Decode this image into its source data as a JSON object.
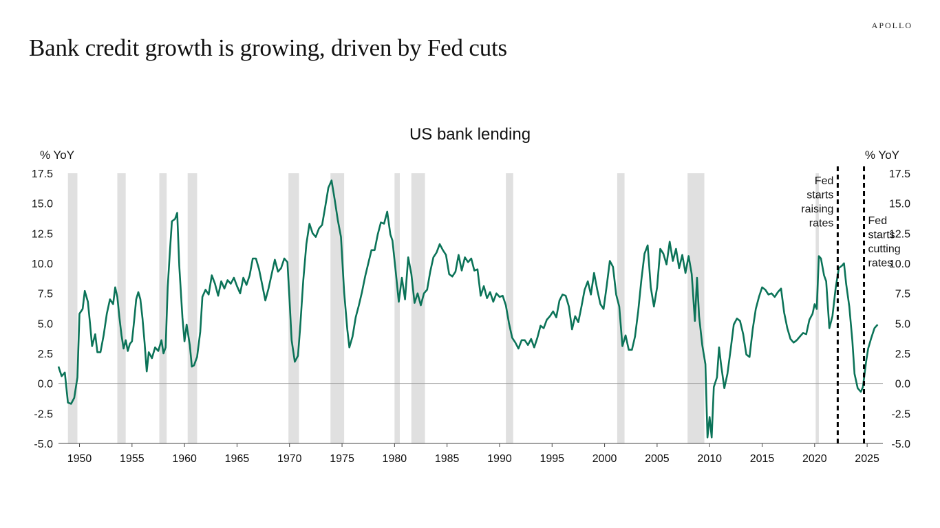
{
  "brand": "APOLLO",
  "headline": "Bank credit growth is growing, driven by Fed cuts",
  "chart_data": {
    "type": "line",
    "title": "US bank lending",
    "ylabel_left": "% YoY",
    "ylabel_right": "% YoY",
    "xlim": [
      1948,
      2026.5
    ],
    "ylim": [
      -5.0,
      17.5
    ],
    "yticks": [
      "17.5",
      "15.0",
      "12.5",
      "10.0",
      "7.5",
      "5.0",
      "2.5",
      "0.0",
      "-2.5",
      "-5.0"
    ],
    "xticks": [
      "1950",
      "1955",
      "1960",
      "1965",
      "1970",
      "1975",
      "1980",
      "1985",
      "1990",
      "1995",
      "2000",
      "2005",
      "2010",
      "2015",
      "2020",
      "2025"
    ],
    "grid": false,
    "zero_line": true,
    "recessions": [
      [
        1948.9,
        1949.8
      ],
      [
        1953.6,
        1954.4
      ],
      [
        1957.6,
        1958.3
      ],
      [
        1960.3,
        1961.2
      ],
      [
        1969.9,
        1970.9
      ],
      [
        1973.9,
        1975.2
      ],
      [
        1980.0,
        1980.5
      ],
      [
        1981.6,
        1982.9
      ],
      [
        1990.6,
        1991.3
      ],
      [
        2001.2,
        2001.9
      ],
      [
        2007.9,
        2009.5
      ],
      [
        2020.1,
        2020.4
      ]
    ],
    "annotations": [
      {
        "x": 2022.2,
        "lines": [
          "Fed",
          "starts",
          "raising",
          "rates"
        ],
        "side": "left"
      },
      {
        "x": 2024.7,
        "lines": [
          "Fed",
          "starts",
          "cutting",
          "rates"
        ],
        "side": "right"
      }
    ],
    "series": [
      {
        "color": "#0b7358",
        "points": [
          [
            1948.0,
            1.4
          ],
          [
            1948.3,
            0.6
          ],
          [
            1948.6,
            0.9
          ],
          [
            1948.9,
            -1.6
          ],
          [
            1949.2,
            -1.7
          ],
          [
            1949.5,
            -1.2
          ],
          [
            1949.8,
            0.5
          ],
          [
            1950.0,
            5.8
          ],
          [
            1950.3,
            6.2
          ],
          [
            1950.5,
            7.7
          ],
          [
            1950.8,
            6.8
          ],
          [
            1951.0,
            5.0
          ],
          [
            1951.2,
            3.1
          ],
          [
            1951.5,
            4.1
          ],
          [
            1951.7,
            2.6
          ],
          [
            1952.0,
            2.6
          ],
          [
            1952.3,
            4.0
          ],
          [
            1952.6,
            5.8
          ],
          [
            1952.9,
            7.0
          ],
          [
            1953.2,
            6.6
          ],
          [
            1953.4,
            8.0
          ],
          [
            1953.6,
            7.2
          ],
          [
            1953.8,
            5.5
          ],
          [
            1954.0,
            4.0
          ],
          [
            1954.2,
            2.9
          ],
          [
            1954.4,
            3.6
          ],
          [
            1954.6,
            2.7
          ],
          [
            1954.8,
            3.3
          ],
          [
            1955.0,
            3.5
          ],
          [
            1955.2,
            5.2
          ],
          [
            1955.4,
            7.0
          ],
          [
            1955.6,
            7.6
          ],
          [
            1955.8,
            7.0
          ],
          [
            1956.0,
            5.4
          ],
          [
            1956.2,
            3.4
          ],
          [
            1956.4,
            1.0
          ],
          [
            1956.6,
            2.6
          ],
          [
            1956.9,
            2.1
          ],
          [
            1957.2,
            3.0
          ],
          [
            1957.5,
            2.7
          ],
          [
            1957.8,
            3.6
          ],
          [
            1958.0,
            2.5
          ],
          [
            1958.2,
            3.0
          ],
          [
            1958.4,
            8.0
          ],
          [
            1958.6,
            10.9
          ],
          [
            1958.8,
            13.5
          ],
          [
            1959.1,
            13.7
          ],
          [
            1959.3,
            14.2
          ],
          [
            1959.5,
            9.8
          ],
          [
            1959.8,
            5.5
          ],
          [
            1960.0,
            3.5
          ],
          [
            1960.2,
            4.9
          ],
          [
            1960.5,
            3.2
          ],
          [
            1960.7,
            1.4
          ],
          [
            1960.9,
            1.5
          ],
          [
            1961.2,
            2.2
          ],
          [
            1961.5,
            4.3
          ],
          [
            1961.7,
            7.2
          ],
          [
            1962.0,
            7.8
          ],
          [
            1962.3,
            7.4
          ],
          [
            1962.6,
            9.0
          ],
          [
            1962.9,
            8.3
          ],
          [
            1963.2,
            7.3
          ],
          [
            1963.5,
            8.5
          ],
          [
            1963.8,
            7.9
          ],
          [
            1964.1,
            8.6
          ],
          [
            1964.4,
            8.3
          ],
          [
            1964.7,
            8.8
          ],
          [
            1965.0,
            8.1
          ],
          [
            1965.3,
            7.5
          ],
          [
            1965.6,
            8.8
          ],
          [
            1965.9,
            8.2
          ],
          [
            1966.2,
            9.0
          ],
          [
            1966.5,
            10.4
          ],
          [
            1966.8,
            10.4
          ],
          [
            1967.1,
            9.5
          ],
          [
            1967.4,
            8.2
          ],
          [
            1967.7,
            6.9
          ],
          [
            1968.0,
            7.9
          ],
          [
            1968.3,
            9.1
          ],
          [
            1968.6,
            10.3
          ],
          [
            1968.9,
            9.3
          ],
          [
            1969.2,
            9.6
          ],
          [
            1969.5,
            10.4
          ],
          [
            1969.8,
            10.1
          ],
          [
            1970.0,
            7.0
          ],
          [
            1970.2,
            3.6
          ],
          [
            1970.5,
            1.8
          ],
          [
            1970.8,
            2.3
          ],
          [
            1971.0,
            4.5
          ],
          [
            1971.3,
            8.5
          ],
          [
            1971.6,
            11.6
          ],
          [
            1971.9,
            13.3
          ],
          [
            1972.2,
            12.5
          ],
          [
            1972.5,
            12.2
          ],
          [
            1972.8,
            12.9
          ],
          [
            1973.1,
            13.2
          ],
          [
            1973.4,
            14.7
          ],
          [
            1973.7,
            16.3
          ],
          [
            1974.0,
            16.9
          ],
          [
            1974.3,
            15.3
          ],
          [
            1974.6,
            13.6
          ],
          [
            1974.9,
            12.2
          ],
          [
            1975.2,
            7.6
          ],
          [
            1975.5,
            4.5
          ],
          [
            1975.7,
            3.0
          ],
          [
            1976.0,
            3.9
          ],
          [
            1976.3,
            5.5
          ],
          [
            1976.6,
            6.5
          ],
          [
            1976.9,
            7.6
          ],
          [
            1977.2,
            8.9
          ],
          [
            1977.5,
            10.0
          ],
          [
            1977.8,
            11.1
          ],
          [
            1978.1,
            11.1
          ],
          [
            1978.4,
            12.4
          ],
          [
            1978.7,
            13.4
          ],
          [
            1979.0,
            13.3
          ],
          [
            1979.3,
            14.3
          ],
          [
            1979.6,
            12.4
          ],
          [
            1979.8,
            11.9
          ],
          [
            1980.1,
            9.4
          ],
          [
            1980.4,
            6.8
          ],
          [
            1980.7,
            8.8
          ],
          [
            1981.0,
            7.0
          ],
          [
            1981.3,
            10.5
          ],
          [
            1981.6,
            9.1
          ],
          [
            1981.9,
            6.7
          ],
          [
            1982.2,
            7.5
          ],
          [
            1982.5,
            6.5
          ],
          [
            1982.8,
            7.5
          ],
          [
            1983.1,
            7.8
          ],
          [
            1983.4,
            9.3
          ],
          [
            1983.7,
            10.5
          ],
          [
            1984.0,
            10.9
          ],
          [
            1984.3,
            11.6
          ],
          [
            1984.6,
            11.1
          ],
          [
            1984.9,
            10.7
          ],
          [
            1985.2,
            9.1
          ],
          [
            1985.5,
            8.9
          ],
          [
            1985.8,
            9.3
          ],
          [
            1986.1,
            10.7
          ],
          [
            1986.4,
            9.4
          ],
          [
            1986.7,
            10.5
          ],
          [
            1987.0,
            10.1
          ],
          [
            1987.3,
            10.4
          ],
          [
            1987.6,
            9.4
          ],
          [
            1987.9,
            9.5
          ],
          [
            1988.2,
            7.3
          ],
          [
            1988.5,
            8.1
          ],
          [
            1988.8,
            7.1
          ],
          [
            1989.1,
            7.6
          ],
          [
            1989.4,
            6.8
          ],
          [
            1989.7,
            7.5
          ],
          [
            1990.0,
            7.2
          ],
          [
            1990.3,
            7.3
          ],
          [
            1990.6,
            6.5
          ],
          [
            1990.9,
            5.0
          ],
          [
            1991.2,
            3.8
          ],
          [
            1991.5,
            3.4
          ],
          [
            1991.8,
            2.9
          ],
          [
            1992.1,
            3.6
          ],
          [
            1992.4,
            3.6
          ],
          [
            1992.7,
            3.2
          ],
          [
            1993.0,
            3.7
          ],
          [
            1993.3,
            3.0
          ],
          [
            1993.6,
            3.8
          ],
          [
            1993.9,
            4.8
          ],
          [
            1994.2,
            4.6
          ],
          [
            1994.5,
            5.3
          ],
          [
            1994.8,
            5.6
          ],
          [
            1995.1,
            6.0
          ],
          [
            1995.4,
            5.5
          ],
          [
            1995.7,
            6.9
          ],
          [
            1996.0,
            7.4
          ],
          [
            1996.3,
            7.3
          ],
          [
            1996.6,
            6.4
          ],
          [
            1996.9,
            4.5
          ],
          [
            1997.2,
            5.6
          ],
          [
            1997.5,
            5.1
          ],
          [
            1997.8,
            6.4
          ],
          [
            1998.1,
            7.8
          ],
          [
            1998.4,
            8.5
          ],
          [
            1998.7,
            7.4
          ],
          [
            1999.0,
            9.2
          ],
          [
            1999.3,
            7.8
          ],
          [
            1999.6,
            6.6
          ],
          [
            1999.9,
            6.2
          ],
          [
            2000.2,
            8.1
          ],
          [
            2000.5,
            10.2
          ],
          [
            2000.8,
            9.7
          ],
          [
            2001.1,
            7.4
          ],
          [
            2001.4,
            6.4
          ],
          [
            2001.7,
            3.1
          ],
          [
            2002.0,
            4.0
          ],
          [
            2002.3,
            2.8
          ],
          [
            2002.6,
            2.8
          ],
          [
            2002.9,
            3.9
          ],
          [
            2003.2,
            6.0
          ],
          [
            2003.5,
            8.6
          ],
          [
            2003.8,
            10.8
          ],
          [
            2004.1,
            11.5
          ],
          [
            2004.4,
            8.0
          ],
          [
            2004.7,
            6.4
          ],
          [
            2005.0,
            8.0
          ],
          [
            2005.3,
            11.2
          ],
          [
            2005.6,
            10.8
          ],
          [
            2005.9,
            9.9
          ],
          [
            2006.2,
            11.8
          ],
          [
            2006.5,
            10.2
          ],
          [
            2006.8,
            11.2
          ],
          [
            2007.1,
            9.6
          ],
          [
            2007.4,
            10.7
          ],
          [
            2007.7,
            9.2
          ],
          [
            2008.0,
            10.6
          ],
          [
            2008.3,
            9.1
          ],
          [
            2008.6,
            5.2
          ],
          [
            2008.8,
            8.8
          ],
          [
            2009.0,
            5.6
          ],
          [
            2009.3,
            3.2
          ],
          [
            2009.6,
            1.6
          ],
          [
            2009.8,
            -4.5
          ],
          [
            2010.0,
            -2.8
          ],
          [
            2010.2,
            -4.5
          ],
          [
            2010.4,
            -0.3
          ],
          [
            2010.7,
            0.5
          ],
          [
            2010.9,
            3.0
          ],
          [
            2011.1,
            1.5
          ],
          [
            2011.4,
            -0.4
          ],
          [
            2011.7,
            0.8
          ],
          [
            2012.0,
            2.8
          ],
          [
            2012.3,
            4.9
          ],
          [
            2012.6,
            5.4
          ],
          [
            2012.9,
            5.2
          ],
          [
            2013.2,
            4.1
          ],
          [
            2013.5,
            2.4
          ],
          [
            2013.8,
            2.2
          ],
          [
            2014.1,
            4.5
          ],
          [
            2014.4,
            6.2
          ],
          [
            2014.7,
            7.2
          ],
          [
            2015.0,
            8.0
          ],
          [
            2015.3,
            7.8
          ],
          [
            2015.6,
            7.4
          ],
          [
            2015.9,
            7.5
          ],
          [
            2016.2,
            7.2
          ],
          [
            2016.5,
            7.6
          ],
          [
            2016.8,
            7.9
          ],
          [
            2017.1,
            5.9
          ],
          [
            2017.4,
            4.6
          ],
          [
            2017.7,
            3.7
          ],
          [
            2018.0,
            3.4
          ],
          [
            2018.3,
            3.6
          ],
          [
            2018.6,
            3.9
          ],
          [
            2018.9,
            4.2
          ],
          [
            2019.2,
            4.1
          ],
          [
            2019.5,
            5.3
          ],
          [
            2019.8,
            5.8
          ],
          [
            2020.0,
            6.6
          ],
          [
            2020.2,
            6.2
          ],
          [
            2020.4,
            10.6
          ],
          [
            2020.6,
            10.4
          ],
          [
            2020.9,
            9.0
          ],
          [
            2021.1,
            8.5
          ],
          [
            2021.4,
            4.6
          ],
          [
            2021.7,
            5.6
          ],
          [
            2022.0,
            7.9
          ],
          [
            2022.3,
            9.6
          ],
          [
            2022.6,
            9.8
          ],
          [
            2022.8,
            10.0
          ],
          [
            2023.0,
            8.3
          ],
          [
            2023.3,
            6.4
          ],
          [
            2023.6,
            3.5
          ],
          [
            2023.8,
            0.8
          ],
          [
            2024.1,
            -0.4
          ],
          [
            2024.4,
            -0.7
          ],
          [
            2024.6,
            -0.3
          ],
          [
            2024.9,
            1.8
          ],
          [
            2025.1,
            2.9
          ],
          [
            2025.4,
            3.8
          ],
          [
            2025.7,
            4.6
          ],
          [
            2026.0,
            4.9
          ]
        ]
      }
    ]
  }
}
